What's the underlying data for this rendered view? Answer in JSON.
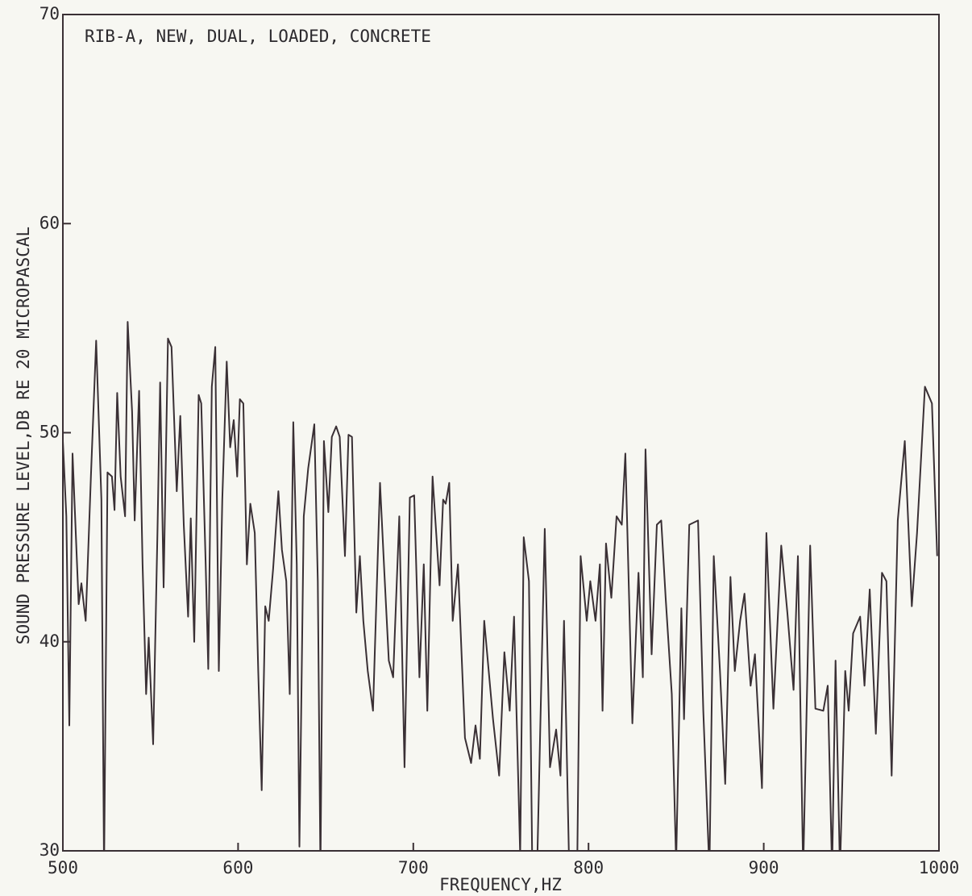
{
  "chart_data": {
    "type": "line",
    "title": "RIB-A, NEW, DUAL, LOADED, CONCRETE",
    "x_label": "FREQUENCY,HZ",
    "y_label": "SOUND PRESSURE LEVEL,DB RE 20 MICROPASCAL",
    "color": "#3a3035",
    "xlim": [
      500,
      1000
    ],
    "xticks": [
      500,
      600,
      700,
      800,
      900,
      1000
    ],
    "ylim": [
      30,
      70
    ],
    "yticks": [
      30,
      40,
      50,
      60,
      70
    ],
    "x": [
      500,
      502,
      503.7,
      505.5,
      509,
      510.6,
      513,
      516,
      519,
      522,
      523.5,
      525.5,
      528,
      529.5,
      531,
      533,
      535.5,
      537,
      539.5,
      541,
      543.5,
      545.5,
      547.5,
      549,
      551.5,
      554,
      555.5,
      557.5,
      560,
      562,
      565,
      567,
      569,
      571.5,
      573,
      575,
      577.5,
      579,
      581.5,
      583,
      585,
      587,
      589,
      591,
      593.5,
      595.5,
      597.5,
      599.5,
      601,
      603,
      605,
      607,
      609.5,
      611.5,
      613.5,
      615.5,
      617.5,
      620,
      623,
      625,
      627.5,
      629.5,
      631.5,
      633.5,
      635,
      637.5,
      640,
      643.5,
      645.5,
      647,
      649,
      651.5,
      653.5,
      656,
      658,
      661,
      663,
      665,
      667.5,
      669.5,
      671.5,
      674,
      677,
      681,
      683.5,
      686,
      688.5,
      692,
      695,
      698,
      700.5,
      703.5,
      706,
      708,
      711,
      715,
      717,
      718.5,
      720.5,
      722.5,
      725.5,
      729.5,
      733,
      735.5,
      738,
      740.5,
      745.5,
      749,
      752,
      755,
      757.5,
      761,
      763,
      766,
      768,
      770.5,
      775,
      778,
      781.5,
      784,
      786,
      789,
      793.5,
      795.5,
      799,
      801,
      804,
      806.5,
      808,
      810,
      813,
      816,
      819,
      821,
      825,
      828.5,
      831,
      832.5,
      836,
      839,
      841.5,
      844,
      847.5,
      850,
      853,
      854.5,
      857.5,
      862.5,
      865.5,
      869,
      871.5,
      875,
      878,
      881,
      883.5,
      886.5,
      889,
      892.5,
      895,
      899,
      901.5,
      905.5,
      910,
      913.5,
      917,
      919.5,
      922.5,
      926.5,
      929.5,
      934,
      936.5,
      939,
      941,
      943.5,
      946.5,
      948.5,
      951,
      955,
      957.5,
      960.5,
      964,
      967.5,
      970,
      973,
      976.5,
      980.5,
      984.5,
      987.5,
      992,
      996,
      999
    ],
    "values": [
      49.6,
      46,
      36,
      49,
      41.8,
      42.8,
      41,
      47.9,
      54.4,
      46.8,
      29,
      48.1,
      47.9,
      46.3,
      51.9,
      47.9,
      46,
      55.3,
      51,
      45.8,
      52,
      43.7,
      37.5,
      40.2,
      35.1,
      45.3,
      52.4,
      42.6,
      54.5,
      54.1,
      47.2,
      50.8,
      45.6,
      41.2,
      45.9,
      40,
      51.8,
      51.4,
      43.7,
      38.7,
      52.2,
      54.1,
      38.6,
      46.8,
      53.4,
      49.3,
      50.6,
      47.9,
      51.6,
      51.4,
      43.7,
      46.6,
      45.2,
      38.6,
      32.9,
      41.7,
      41,
      43.5,
      47.2,
      44.4,
      42.9,
      37.5,
      50.5,
      43.7,
      30.2,
      46,
      48.3,
      50.4,
      42.9,
      29,
      49.6,
      46.2,
      49.8,
      50.3,
      49.8,
      44.1,
      49.9,
      49.8,
      41.4,
      44.1,
      41,
      38.6,
      36.7,
      47.6,
      43.3,
      39.1,
      38.3,
      46,
      34,
      46.9,
      47,
      38.3,
      43.7,
      36.7,
      47.9,
      42.7,
      46.8,
      46.6,
      47.6,
      41,
      43.7,
      35.4,
      34.2,
      36,
      34.4,
      41,
      36.3,
      33.6,
      39.5,
      36.7,
      41.2,
      29.8,
      45,
      42.9,
      28.6,
      28.6,
      45.4,
      34,
      35.8,
      33.6,
      41,
      29,
      29,
      44.1,
      41,
      42.9,
      41,
      43.7,
      36.7,
      44.7,
      42.1,
      46,
      45.6,
      49,
      36.1,
      43.3,
      38.3,
      49.2,
      39.4,
      45.6,
      45.8,
      42.1,
      37.5,
      29.4,
      41.6,
      36.3,
      45.6,
      45.8,
      36.7,
      29,
      44.1,
      38.6,
      33.2,
      43.1,
      38.6,
      41,
      42.3,
      37.9,
      39.4,
      33,
      45.2,
      36.8,
      44.6,
      41.4,
      37.7,
      44.1,
      29,
      44.6,
      36.8,
      36.7,
      37.9,
      29,
      39.1,
      29,
      38.6,
      36.7,
      40.4,
      41.2,
      37.9,
      42.5,
      35.6,
      43.3,
      42.9,
      33.6,
      45.8,
      49.6,
      41.7,
      45.2,
      52.2,
      51.4,
      44.1
    ]
  }
}
